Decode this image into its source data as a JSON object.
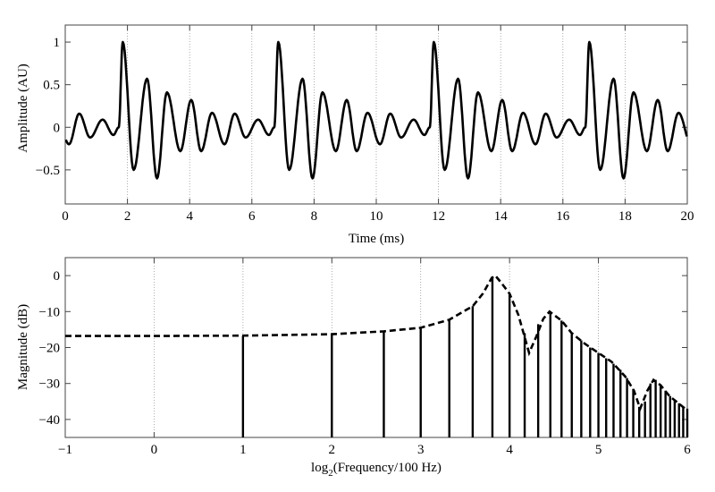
{
  "chart_data": [
    {
      "type": "line",
      "xlabel": "Time (ms)",
      "ylabel": "Amplitude (AU)",
      "xlim": [
        0,
        20
      ],
      "ylim": [
        -0.9,
        1.2
      ],
      "xticks": [
        0,
        2,
        4,
        6,
        8,
        10,
        12,
        14,
        16,
        18,
        20
      ],
      "xtick_labels": [
        "0",
        "2",
        "4",
        "6",
        "8",
        "10",
        "12",
        "14",
        "16",
        "18",
        "20"
      ],
      "yticks": [
        1,
        0.5,
        0,
        -0.5
      ],
      "ytick_labels": [
        "1",
        "0.5",
        "0",
        "−0.5"
      ],
      "grid": "x-dotted",
      "series": [
        {
          "period_ms": 5,
          "one_period_extrema": [
            [
              1.55,
              -0.09
            ],
            [
              1.72,
              0
            ],
            [
              1.85,
              1.0
            ],
            [
              2.2,
              -0.5
            ],
            [
              2.63,
              0.57
            ],
            [
              2.95,
              -0.6
            ],
            [
              3.27,
              0.41
            ],
            [
              3.7,
              -0.28
            ],
            [
              4.05,
              0.32
            ],
            [
              4.37,
              -0.28
            ],
            [
              4.72,
              0.17
            ],
            [
              5.12,
              -0.2
            ],
            [
              5.45,
              0.16
            ],
            [
              5.8,
              -0.12
            ],
            [
              6.2,
              0.09
            ],
            [
              6.55,
              -0.09
            ]
          ],
          "color": "#000000"
        }
      ]
    },
    {
      "type": "stem",
      "xlabel": "log2(Frequency/100 Hz)",
      "xlabel_base": "log",
      "xlabel_sub": "2",
      "xlabel_rest": "(Frequency/100 Hz)",
      "ylabel": "Magnitude (dB)",
      "xlim": [
        -1,
        6
      ],
      "ylim": [
        -45,
        5
      ],
      "xticks": [
        -1,
        0,
        1,
        2,
        3,
        4,
        5,
        6
      ],
      "xtick_labels": [
        "−1",
        "0",
        "1",
        "2",
        "3",
        "4",
        "5",
        "6"
      ],
      "yticks": [
        0,
        -10,
        -20,
        -30,
        -40
      ],
      "ytick_labels": [
        "0",
        "−10",
        "−20",
        "−30",
        "−40"
      ],
      "grid": "x-dotted",
      "stems": {
        "x": [
          1,
          2,
          2.585,
          3,
          3.322,
          3.585,
          3.807,
          4,
          4.17,
          4.322,
          4.459,
          4.585,
          4.7,
          4.807,
          4.907,
          5,
          5.087,
          5.17,
          5.248,
          5.322,
          5.392,
          5.459,
          5.524,
          5.585,
          5.644,
          5.7,
          5.755,
          5.807,
          5.858,
          5.907,
          5.954,
          6
        ],
        "y": [
          -16.8,
          -16.3,
          -15.5,
          -14.5,
          -12.3,
          -8.5,
          -0.3,
          -5,
          -16,
          -13.5,
          -10,
          -12.5,
          -16,
          -18,
          -20,
          -21.5,
          -23,
          -24.5,
          -26.2,
          -28.5,
          -31.5,
          -36.5,
          -35,
          -30,
          -29,
          -30.5,
          -32,
          -33.5,
          -34.5,
          -35.5,
          -36.5,
          -37
        ]
      },
      "envelope": {
        "style": "dashed",
        "points": [
          [
            -1,
            -16.8
          ],
          [
            0,
            -16.8
          ],
          [
            1,
            -16.7
          ],
          [
            2,
            -16.3
          ],
          [
            2.585,
            -15.5
          ],
          [
            3,
            -14.5
          ],
          [
            3.32,
            -12.3
          ],
          [
            3.585,
            -8.5
          ],
          [
            3.7,
            -5
          ],
          [
            3.8,
            -0.6
          ],
          [
            3.84,
            0
          ],
          [
            3.9,
            -1.8
          ],
          [
            4,
            -5
          ],
          [
            4.1,
            -11
          ],
          [
            4.22,
            -21.5
          ],
          [
            4.3,
            -17
          ],
          [
            4.38,
            -12
          ],
          [
            4.45,
            -10
          ],
          [
            4.585,
            -12.5
          ],
          [
            4.7,
            -16
          ],
          [
            4.85,
            -19
          ],
          [
            5,
            -21.5
          ],
          [
            5.15,
            -24
          ],
          [
            5.3,
            -28
          ],
          [
            5.4,
            -32
          ],
          [
            5.47,
            -37
          ],
          [
            5.55,
            -32
          ],
          [
            5.62,
            -29
          ],
          [
            5.7,
            -30.5
          ],
          [
            5.8,
            -33.5
          ],
          [
            5.9,
            -35.5
          ],
          [
            6,
            -37.5
          ]
        ]
      }
    }
  ]
}
